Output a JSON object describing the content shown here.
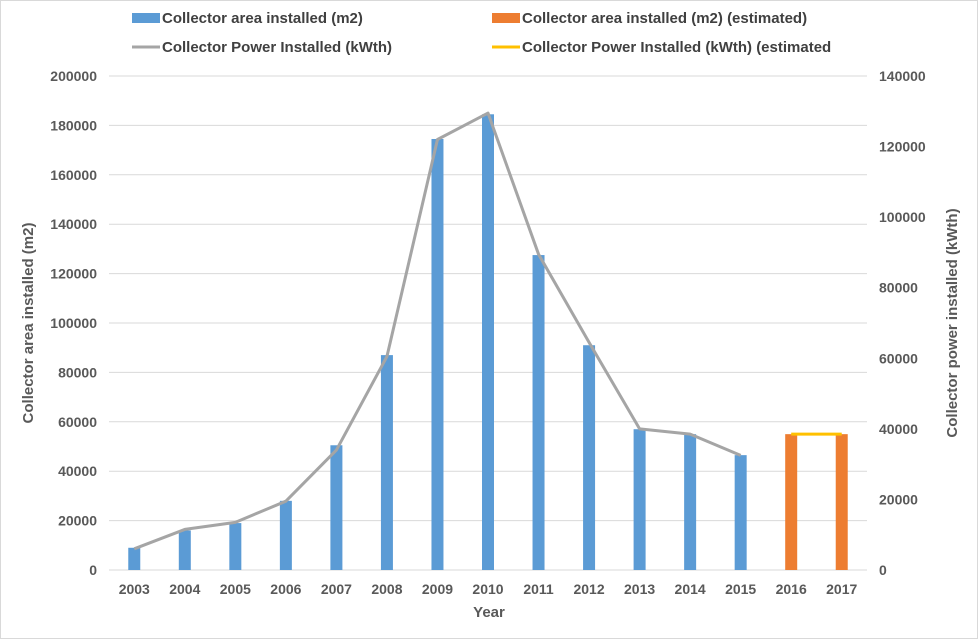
{
  "chart_data": {
    "type": "bar",
    "categories": [
      "2003",
      "2004",
      "2005",
      "2006",
      "2007",
      "2008",
      "2009",
      "2010",
      "2011",
      "2012",
      "2013",
      "2014",
      "2015",
      "2016",
      "2017"
    ],
    "series": [
      {
        "name": "Collector area installed (m2)",
        "kind": "bar",
        "axis": "left",
        "color": "#5b9bd5",
        "values": [
          9000,
          16000,
          19000,
          28000,
          50500,
          87000,
          174500,
          184500,
          127500,
          91000,
          57000,
          55000,
          46500,
          null,
          null
        ]
      },
      {
        "name": "Collector area installed (m2) (estimated)",
        "kind": "bar",
        "axis": "left",
        "color": "#ed7d31",
        "values": [
          null,
          null,
          null,
          null,
          null,
          null,
          null,
          null,
          null,
          null,
          null,
          null,
          null,
          55000,
          55000
        ]
      },
      {
        "name": "Collector Power Installed (kWth)",
        "kind": "line",
        "axis": "right",
        "color": "#a5a5a5",
        "values": [
          6000,
          11500,
          13500,
          19500,
          34000,
          60500,
          122000,
          129500,
          89500,
          64500,
          40000,
          38500,
          32500,
          null,
          null
        ]
      },
      {
        "name": "Collector Power Installed (kWth) (estimated",
        "kind": "line",
        "axis": "right",
        "color": "#ffc000",
        "values": [
          null,
          null,
          null,
          null,
          null,
          null,
          null,
          null,
          null,
          null,
          null,
          null,
          null,
          38500,
          38500
        ]
      }
    ],
    "xlabel": "Year",
    "ylabel": "Collector area installed (m2)",
    "y2label": "Collector power installed (kWth)",
    "ylim": [
      0,
      200000
    ],
    "y2lim": [
      0,
      140000
    ],
    "yticks": [
      "0",
      "20000",
      "40000",
      "60000",
      "80000",
      "100000",
      "120000",
      "140000",
      "160000",
      "180000",
      "200000"
    ],
    "y2ticks": [
      "0",
      "20000",
      "40000",
      "60000",
      "80000",
      "100000",
      "120000",
      "140000"
    ],
    "grid": true,
    "legend_position": "top"
  }
}
